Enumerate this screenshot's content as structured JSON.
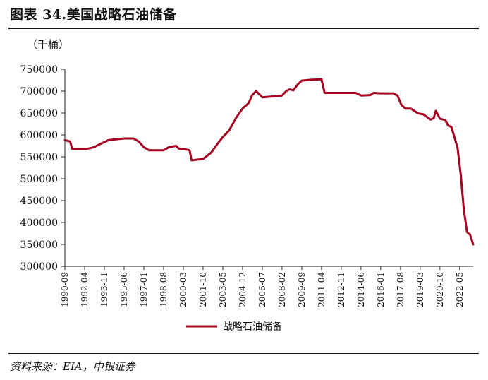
{
  "figure": {
    "title": "图表 34.美国战略石油储备",
    "source": "资料来源：EIA，中银证券"
  },
  "colors": {
    "series": "#A50021",
    "axis": "#222222"
  },
  "chart_data": {
    "type": "line",
    "title": "",
    "ylabel": "（千桶）",
    "xlabel": "",
    "ylim": [
      300000,
      750000
    ],
    "yticks": [
      300000,
      350000,
      400000,
      450000,
      500000,
      550000,
      600000,
      650000,
      700000,
      750000
    ],
    "ytick_labels": [
      "300000",
      "350000",
      "400000",
      "450000",
      "500000",
      "550000",
      "600000",
      "650000",
      "700000",
      "750000"
    ],
    "xticks": [
      "1990-09",
      "1992-04",
      "1993-11",
      "1995-06",
      "1997-01",
      "1998-08",
      "2000-03",
      "2001-10",
      "2003-05",
      "2004-12",
      "2006-07",
      "2008-02",
      "2009-09",
      "2011-04",
      "2012-11",
      "2014-06",
      "2016-01",
      "2017-08",
      "2019-03",
      "2020-10",
      "2022-05"
    ],
    "grid": false,
    "legend": "bottom",
    "series": [
      {
        "name": "战略石油储备",
        "x": [
          "1990-09",
          "1991-02",
          "1991-04",
          "1992-06",
          "1993-01",
          "1993-06",
          "1994-03",
          "1995-06",
          "1996-03",
          "1996-08",
          "1997-01",
          "1997-06",
          "1998-08",
          "1999-01",
          "1999-08",
          "1999-11",
          "2000-03",
          "2000-09",
          "2000-11",
          "2001-03",
          "2001-10",
          "2002-06",
          "2002-12",
          "2003-05",
          "2003-11",
          "2004-06",
          "2004-12",
          "2005-06",
          "2005-09",
          "2006-01",
          "2006-07",
          "2007-06",
          "2008-02",
          "2008-06",
          "2008-09",
          "2009-01",
          "2009-05",
          "2009-09",
          "2010-06",
          "2011-04",
          "2011-07",
          "2012-11",
          "2014-01",
          "2014-06",
          "2015-03",
          "2015-06",
          "2016-01",
          "2017-01",
          "2017-05",
          "2017-09",
          "2018-01",
          "2018-06",
          "2019-01",
          "2019-06",
          "2019-10",
          "2020-01",
          "2020-04",
          "2020-06",
          "2020-10",
          "2021-03",
          "2021-06",
          "2021-09",
          "2021-12",
          "2022-03",
          "2022-06",
          "2022-09",
          "2022-12",
          "2023-03",
          "2023-06"
        ],
        "values": [
          588000,
          585000,
          568000,
          568000,
          572000,
          578000,
          588000,
          592000,
          592000,
          585000,
          572000,
          565000,
          565000,
          572000,
          575000,
          568000,
          568000,
          565000,
          542000,
          543000,
          545000,
          560000,
          580000,
          595000,
          610000,
          640000,
          660000,
          673000,
          690000,
          700000,
          686000,
          688000,
          690000,
          700000,
          704000,
          702000,
          715000,
          724000,
          726000,
          727000,
          696000,
          696000,
          696000,
          690000,
          691000,
          696000,
          695000,
          695000,
          690000,
          668000,
          660000,
          660000,
          649000,
          647000,
          640000,
          635000,
          638000,
          655000,
          637000,
          634000,
          621000,
          618000,
          594000,
          570000,
          510000,
          430000,
          378000,
          372000,
          350000
        ]
      }
    ]
  }
}
